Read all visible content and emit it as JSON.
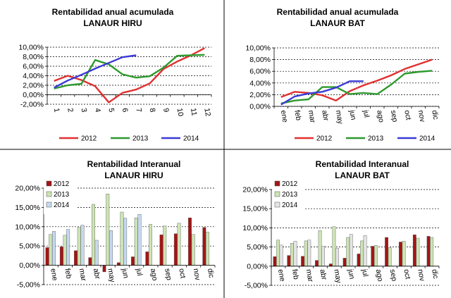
{
  "chart_data": [
    {
      "type": "line",
      "title": "Rentabilidad anual acumulada",
      "subtitle": "LANAUR HIRU",
      "categories": [
        "1",
        "2",
        "3",
        "4",
        "5",
        "6",
        "7",
        "8",
        "9",
        "10",
        "11",
        "12"
      ],
      "ylim": [
        -2,
        10
      ],
      "yticks": [
        "-2,00%",
        "0,00%",
        "2,00%",
        "4,00%",
        "6,00%",
        "8,00%",
        "10,00%"
      ],
      "legend_position": "bottom",
      "grid": "dashed horizontal",
      "series": [
        {
          "name": "2012",
          "color": "#e03030",
          "values": [
            2.9,
            4.0,
            3.1,
            1.8,
            -1.6,
            0.4,
            1.1,
            2.4,
            5.4,
            7.0,
            8.3,
            9.8
          ]
        },
        {
          "name": "2013",
          "color": "#2e9a2e",
          "values": [
            1.3,
            2.0,
            2.3,
            7.3,
            6.4,
            4.3,
            3.6,
            3.9,
            5.7,
            8.2,
            8.3,
            8.4
          ]
        },
        {
          "name": "2014",
          "color": "#3a3ad6",
          "values": [
            1.5,
            3.0,
            4.2,
            5.5,
            6.7,
            7.9,
            8.3,
            null,
            null,
            null,
            null,
            null
          ]
        }
      ]
    },
    {
      "type": "line",
      "title": "Rentabilidad anual acumulada",
      "subtitle": "LANAUR BAT",
      "categories": [
        "ene",
        "feb",
        "mar",
        "abr",
        "may",
        "jun",
        "jul",
        "ago",
        "sep",
        "oct",
        "nov",
        "dic"
      ],
      "ylim": [
        0,
        10
      ],
      "yticks": [
        "0,00%",
        "2,00%",
        "4,00%",
        "6,00%",
        "8,00%",
        "10,00%"
      ],
      "legend_position": "bottom",
      "grid": "dashed horizontal",
      "series": [
        {
          "name": "2012",
          "color": "#e03030",
          "values": [
            1.6,
            2.5,
            2.3,
            1.9,
            1.0,
            2.6,
            3.6,
            4.4,
            5.3,
            6.4,
            7.2,
            8.0
          ]
        },
        {
          "name": "2013",
          "color": "#2e9a2e",
          "values": [
            0.5,
            1.0,
            1.2,
            3.3,
            3.3,
            2.1,
            2.3,
            2.1,
            3.7,
            5.6,
            5.9,
            6.1
          ]
        },
        {
          "name": "2014",
          "color": "#3a3ad6",
          "values": [
            0.3,
            1.7,
            2.2,
            2.5,
            3.2,
            4.3,
            4.3,
            null,
            null,
            null,
            null,
            null
          ]
        }
      ]
    },
    {
      "type": "bar",
      "title": "Rentabilidad Interanual",
      "subtitle": "LANAUR HIRU",
      "categories": [
        "ene",
        "feb",
        "mar",
        "abr",
        "may",
        "jun",
        "jul",
        "ago",
        "sep",
        "oct",
        "nov",
        "dic"
      ],
      "ylim": [
        -5,
        20
      ],
      "yticks": [
        "-5,00%",
        "0,00%",
        "5,00%",
        "10,00%",
        "15,00%",
        "20,00%"
      ],
      "legend_position": "top-left",
      "grid": "dashed horizontal",
      "series": [
        {
          "name": "2012",
          "color": "#a31515",
          "values": [
            4.6,
            4.8,
            3.8,
            2.0,
            -1.7,
            0.7,
            2.2,
            3.5,
            7.9,
            8.2,
            12.3,
            9.8
          ]
        },
        {
          "name": "2013",
          "color": "#cde4b4",
          "values": [
            8.0,
            7.8,
            9.8,
            15.8,
            18.5,
            13.8,
            12.3,
            10.6,
            10.2,
            10.9,
            8.0,
            8.6
          ]
        },
        {
          "name": "2014",
          "color": "#c6d9f0",
          "values": [
            8.8,
            9.3,
            10.4,
            6.5,
            9.0,
            12.2,
            13.2,
            null,
            null,
            null,
            null,
            null
          ]
        }
      ]
    },
    {
      "type": "bar",
      "title": "Rentabilidad Interanual",
      "subtitle": "LANAUR BAT",
      "categories": [
        "ene",
        "feb",
        "mar",
        "abr",
        "may",
        "jun",
        "jul",
        "ago",
        "sep",
        "oct",
        "nov",
        "dic"
      ],
      "ylim": [
        -5,
        20
      ],
      "yticks": [
        "-5,00%",
        "0,00%",
        "5,00%",
        "10,00%",
        "15,00%",
        "20,00%"
      ],
      "legend_position": "top-left",
      "grid": "dashed horizontal",
      "series": [
        {
          "name": "2012",
          "color": "#a31515",
          "values": [
            2.5,
            2.8,
            2.6,
            1.5,
            0.6,
            2.1,
            3.2,
            5.2,
            7.5,
            6.3,
            8.2,
            7.8
          ]
        },
        {
          "name": "2013",
          "color": "#cde4b4",
          "values": [
            6.8,
            6.0,
            6.6,
            9.3,
            10.3,
            7.5,
            6.6,
            5.4,
            4.8,
            6.5,
            7.3,
            7.5
          ]
        },
        {
          "name": "2014",
          "color": "#e4e4e4",
          "values": [
            5.5,
            6.5,
            6.8,
            5.2,
            4.7,
            8.3,
            8.0,
            null,
            null,
            null,
            null,
            null
          ]
        }
      ]
    }
  ]
}
